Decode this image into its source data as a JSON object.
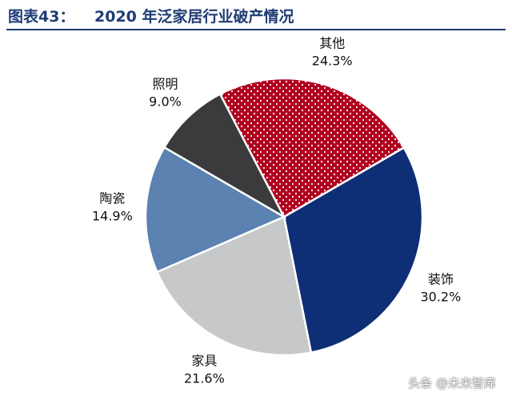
{
  "figure": {
    "label": "图表43：",
    "title": "2020 年泛家居行业破产情况"
  },
  "watermark": "头条 @未来智库",
  "chart_data": {
    "type": "pie",
    "title": "2020 年泛家居行业破产情况",
    "slices": [
      {
        "label": "装饰",
        "value": 30.2,
        "display": "30.2%",
        "color": "#0e2f75",
        "pattern": "solid"
      },
      {
        "label": "家具",
        "value": 21.6,
        "display": "21.6%",
        "color": "#c7c8ca",
        "pattern": "solid"
      },
      {
        "label": "陶瓷",
        "value": 14.9,
        "display": "14.9%",
        "color": "#5b82b0",
        "pattern": "solid"
      },
      {
        "label": "照明",
        "value": 9.0,
        "display": "9.0%",
        "color": "#3b3b3d",
        "pattern": "solid"
      },
      {
        "label": "其他",
        "value": 24.3,
        "display": "24.3%",
        "color": "#b0001e",
        "pattern": "dotted"
      }
    ],
    "start_angle_deg": 60,
    "direction": "clockwise",
    "legend": "none",
    "labels": "outside"
  }
}
